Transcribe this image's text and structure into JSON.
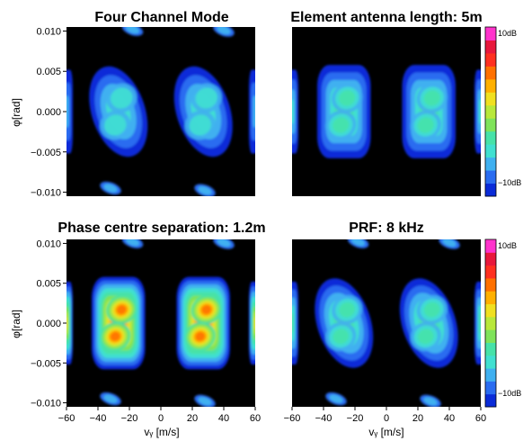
{
  "chart_data": {
    "type": "heatmap",
    "colormap_colors": [
      "#0a2bd8",
      "#2a6cf0",
      "#3fb0f0",
      "#40e0d0",
      "#46e2a8",
      "#7fe35a",
      "#b8e83a",
      "#f0e020",
      "#ffb000",
      "#ff7000",
      "#ff3020",
      "#e8183c",
      "#ff33cc"
    ],
    "background_color": "#000000",
    "colorbar": {
      "min": -10,
      "max": 10,
      "min_label": "−10dB",
      "max_label": "10dB"
    },
    "panels": [
      {
        "title": "Four Channel Mode",
        "xlim": [
          -60,
          60
        ],
        "ylim": [
          -0.0105,
          0.0105
        ],
        "ylabel": "φ[rad]",
        "yticks": [
          "0.010",
          "0.005",
          "0.000",
          "−0.005",
          "−0.010"
        ],
        "yticks_values": [
          0.01,
          0.005,
          0.0,
          -0.005,
          -0.01
        ],
        "show_colorbar": false
      },
      {
        "title": "Element antenna length: 5m",
        "xlim": [
          -60,
          60
        ],
        "ylim": [
          -0.0105,
          0.0105
        ],
        "show_colorbar": true
      },
      {
        "title": "Phase centre separation: 1.2m",
        "xlim": [
          -60,
          60
        ],
        "ylim": [
          -0.0105,
          0.0105
        ],
        "ylabel": "φ[rad]",
        "xlabel": "vᵧ [m/s]",
        "yticks": [
          "0.010",
          "0.005",
          "0.000",
          "−0.005",
          "−0.010"
        ],
        "yticks_values": [
          0.01,
          0.005,
          0.0,
          -0.005,
          -0.01
        ],
        "xticks": [
          "−60",
          "−40",
          "−20",
          "0",
          "20",
          "40",
          "60"
        ],
        "xticks_values": [
          -60,
          -40,
          -20,
          0,
          20,
          40,
          60
        ],
        "show_colorbar": false
      },
      {
        "title": "PRF: 8 kHz",
        "xlim": [
          -60,
          60
        ],
        "ylim": [
          -0.0105,
          0.0105
        ],
        "xlabel": "vᵧ [m/s]",
        "xticks": [
          "−60",
          "−40",
          "−20",
          "0",
          "20",
          "40",
          "60"
        ],
        "xticks_values": [
          -60,
          -40,
          -20,
          0,
          20,
          40,
          60
        ],
        "show_colorbar": true
      }
    ]
  }
}
